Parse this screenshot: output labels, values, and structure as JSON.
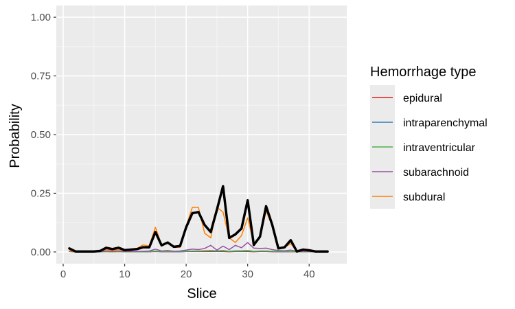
{
  "chart_data": {
    "type": "line",
    "xlabel": "Slice",
    "ylabel": "Probability",
    "xlim": [
      0,
      45
    ],
    "ylim": [
      0,
      1.0
    ],
    "x_ticks": [
      0,
      10,
      20,
      30,
      40
    ],
    "y_ticks": [
      0.0,
      0.25,
      0.5,
      0.75,
      1.0
    ],
    "y_tick_labels": [
      "0.00",
      "0.25",
      "0.50",
      "0.75",
      "1.00"
    ],
    "grid": true,
    "legend": {
      "title": "Hemorrhage type",
      "placement": "right"
    },
    "x": [
      1,
      2,
      3,
      4,
      5,
      6,
      7,
      8,
      9,
      10,
      11,
      12,
      13,
      14,
      15,
      16,
      17,
      18,
      19,
      20,
      21,
      22,
      23,
      24,
      25,
      26,
      27,
      28,
      29,
      30,
      31,
      32,
      33,
      34,
      35,
      36,
      37,
      38,
      39,
      40,
      41,
      42,
      43
    ],
    "series": [
      {
        "name": "epidural",
        "color": "#E41A1C",
        "width": 1.5,
        "values": [
          0.002,
          0.001,
          0.001,
          0.001,
          0.001,
          0.001,
          0.002,
          0.001,
          0.002,
          0.001,
          0.001,
          0.001,
          0.001,
          0.001,
          0.002,
          0.001,
          0.001,
          0.001,
          0.001,
          0.002,
          0.002,
          0.002,
          0.002,
          0.002,
          0.002,
          0.002,
          0.001,
          0.002,
          0.002,
          0.002,
          0.001,
          0.002,
          0.002,
          0.001,
          0.001,
          0.001,
          0.001,
          0.001,
          0.001,
          0.001,
          0.001,
          0.001,
          0.001
        ]
      },
      {
        "name": "intraparenchymal",
        "color": "#377EB8",
        "width": 1.5,
        "values": [
          0.002,
          0.001,
          0.001,
          0.001,
          0.001,
          0.001,
          0.002,
          0.001,
          0.002,
          0.001,
          0.001,
          0.001,
          0.001,
          0.001,
          0.003,
          0.001,
          0.002,
          0.001,
          0.001,
          0.002,
          0.003,
          0.003,
          0.004,
          0.004,
          0.003,
          0.004,
          0.002,
          0.003,
          0.003,
          0.004,
          0.002,
          0.003,
          0.003,
          0.002,
          0.001,
          0.001,
          0.002,
          0.001,
          0.001,
          0.001,
          0.001,
          0.001,
          0.001
        ]
      },
      {
        "name": "intraventricular",
        "color": "#4DAF4A",
        "width": 1.5,
        "values": [
          0.002,
          0.001,
          0.001,
          0.001,
          0.001,
          0.001,
          0.002,
          0.001,
          0.002,
          0.001,
          0.001,
          0.001,
          0.001,
          0.002,
          0.004,
          0.002,
          0.002,
          0.002,
          0.002,
          0.003,
          0.004,
          0.004,
          0.005,
          0.006,
          0.005,
          0.006,
          0.003,
          0.005,
          0.005,
          0.006,
          0.003,
          0.004,
          0.004,
          0.003,
          0.002,
          0.002,
          0.002,
          0.001,
          0.001,
          0.001,
          0.001,
          0.001,
          0.001
        ]
      },
      {
        "name": "subarachnoid",
        "color": "#984EA3",
        "width": 1.5,
        "values": [
          0.003,
          0.001,
          0.001,
          0.001,
          0.001,
          0.002,
          0.004,
          0.002,
          0.004,
          0.002,
          0.002,
          0.002,
          0.003,
          0.004,
          0.012,
          0.004,
          0.006,
          0.003,
          0.004,
          0.008,
          0.012,
          0.01,
          0.015,
          0.028,
          0.008,
          0.025,
          0.01,
          0.028,
          0.018,
          0.04,
          0.016,
          0.015,
          0.016,
          0.01,
          0.006,
          0.005,
          0.008,
          0.002,
          0.002,
          0.002,
          0.001,
          0.001,
          0.001
        ]
      },
      {
        "name": "subdural",
        "color": "#FF7F00",
        "width": 1.5,
        "values": [
          0.005,
          0.001,
          0.001,
          0.002,
          0.002,
          0.004,
          0.01,
          0.006,
          0.01,
          0.005,
          0.006,
          0.015,
          0.03,
          0.025,
          0.105,
          0.03,
          0.04,
          0.02,
          0.02,
          0.11,
          0.19,
          0.19,
          0.08,
          0.06,
          0.19,
          0.17,
          0.06,
          0.04,
          0.07,
          0.145,
          0.035,
          0.06,
          0.175,
          0.11,
          0.015,
          0.02,
          0.035,
          0.004,
          0.006,
          0.004,
          0.002,
          0.002,
          0.002
        ]
      },
      {
        "name": "",
        "color": "#000000",
        "width": 3.5,
        "values": [
          0.015,
          0.002,
          0.002,
          0.002,
          0.002,
          0.004,
          0.018,
          0.012,
          0.018,
          0.008,
          0.01,
          0.012,
          0.02,
          0.02,
          0.085,
          0.028,
          0.04,
          0.022,
          0.025,
          0.105,
          0.165,
          0.17,
          0.115,
          0.085,
          0.18,
          0.28,
          0.06,
          0.075,
          0.1,
          0.22,
          0.03,
          0.065,
          0.195,
          0.115,
          0.015,
          0.02,
          0.05,
          0.002,
          0.01,
          0.007,
          0.002,
          0.002,
          0.002
        ]
      }
    ]
  }
}
